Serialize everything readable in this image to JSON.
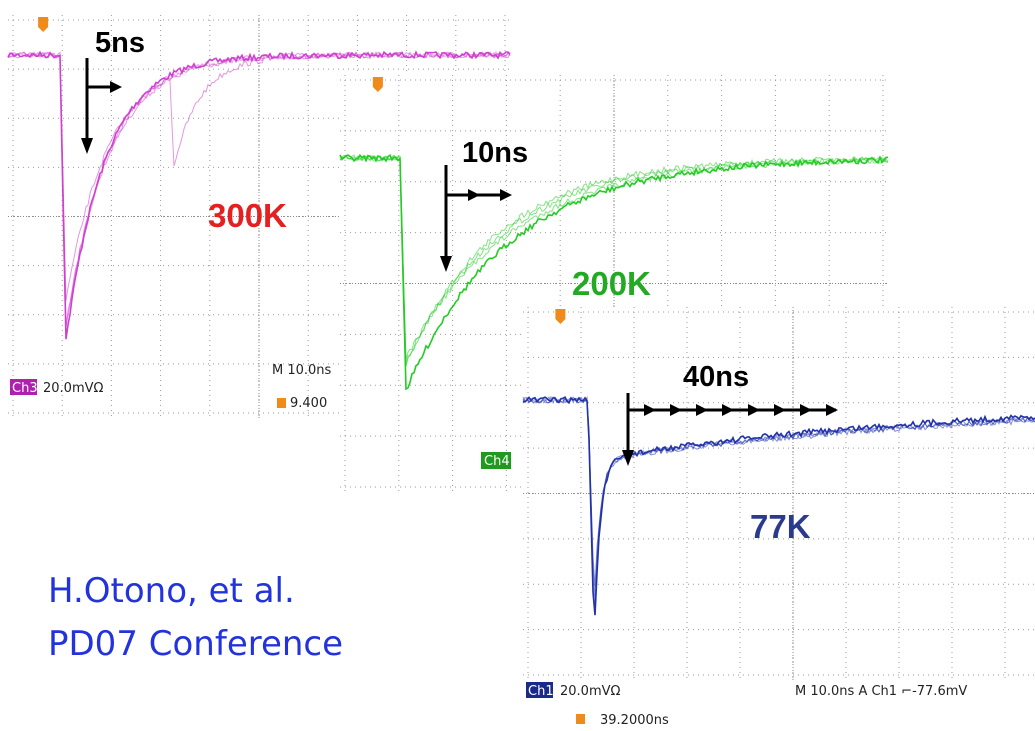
{
  "panels": [
    {
      "arrow_label": "5ns",
      "temperature": "300K",
      "channel": "Ch3",
      "scale": "20.0mVΩ",
      "timebase": "M 10.0ns",
      "trigger": "9.400"
    },
    {
      "arrow_label": "10ns",
      "temperature": "200K",
      "channel": "Ch4"
    },
    {
      "arrow_label": "40ns",
      "temperature": "77K",
      "channel": "Ch1",
      "scale": "20.0mVΩ",
      "timebase": "M 10.0ns  A  Ch1  ⌐-77.6mV",
      "trigger": "39.2000ns"
    }
  ],
  "citation": [
    "H.Otono, et al.",
    "PD07 Conference"
  ]
}
